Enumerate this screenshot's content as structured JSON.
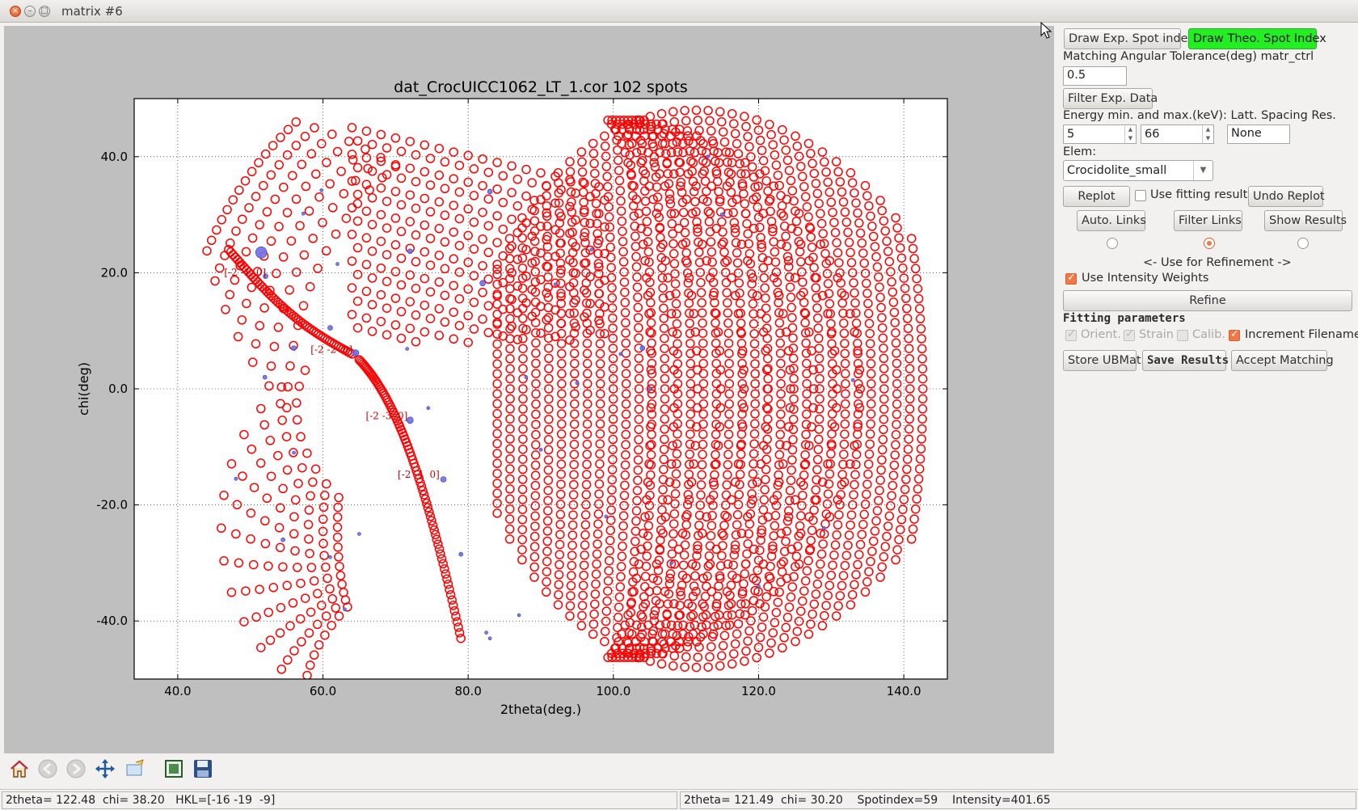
{
  "window": {
    "title": "matrix #6"
  },
  "chart_data": {
    "type": "scatter",
    "title": "dat_CrocUICC1062_LT_1.cor 102 spots",
    "xlabel": "2theta(deg.)",
    "ylabel": "chi(deg)",
    "xlim": [
      34,
      146
    ],
    "ylim": [
      -50,
      50
    ],
    "grid": true,
    "x_ticks": [
      "40.0",
      "60.0",
      "80.0",
      "100.0",
      "120.0",
      "140.0"
    ],
    "y_ticks": [
      "40.0",
      "20.0",
      "0.0",
      "-20.0",
      "-40.0"
    ],
    "series": [
      {
        "role": "theoretical",
        "marker": "open-circle",
        "color": "#ff0000",
        "families": [
          {
            "kind": "arc",
            "center": [
              0,
              0
            ],
            "r_range": [
              50,
              60
            ],
            "angle_range": [
              -40,
              40
            ]
          },
          {
            "kind": "field",
            "x_range": [
              68,
              138
            ],
            "y_range": [
              -48,
              47
            ]
          }
        ]
      },
      {
        "role": "experimental",
        "marker": "filled-circle",
        "color": "#6f6fe8",
        "points": [
          {
            "x": 51.5,
            "y": 23.5,
            "size": 14
          },
          {
            "x": 52.1,
            "y": 19.4,
            "size": 6
          },
          {
            "x": 56.0,
            "y": 7.0,
            "size": 6
          },
          {
            "x": 57.3,
            "y": 30.2,
            "size": 4
          },
          {
            "x": 59.8,
            "y": 34.2,
            "size": 4
          },
          {
            "x": 61.0,
            "y": 10.5,
            "size": 6
          },
          {
            "x": 64.5,
            "y": 6.2,
            "size": 8
          },
          {
            "x": 71.6,
            "y": 6.9,
            "size": 4
          },
          {
            "x": 72.0,
            "y": 23.7,
            "size": 6
          },
          {
            "x": 72.0,
            "y": -5.4,
            "size": 8
          },
          {
            "x": 74.5,
            "y": -3.3,
            "size": 4
          },
          {
            "x": 76.6,
            "y": -15.6,
            "size": 7
          },
          {
            "x": 82.0,
            "y": 18.2,
            "size": 7
          },
          {
            "x": 83.0,
            "y": 34.0,
            "size": 6
          },
          {
            "x": 62.0,
            "y": 21.5,
            "size": 4
          },
          {
            "x": 48.0,
            "y": -15.5,
            "size": 4
          },
          {
            "x": 52.0,
            "y": 2.0,
            "size": 5
          },
          {
            "x": 54.5,
            "y": -26.0,
            "size": 5
          },
          {
            "x": 56.0,
            "y": -11.0,
            "size": 4
          },
          {
            "x": 61.0,
            "y": -29.0,
            "size": 4
          },
          {
            "x": 63.0,
            "y": -38.0,
            "size": 4
          },
          {
            "x": 65.0,
            "y": -25.0,
            "size": 4
          },
          {
            "x": 79.0,
            "y": -28.5,
            "size": 5
          },
          {
            "x": 82.5,
            "y": -42.0,
            "size": 4
          },
          {
            "x": 83.0,
            "y": -43.0,
            "size": 4
          },
          {
            "x": 87.0,
            "y": -39.0,
            "size": 4
          },
          {
            "x": 88.0,
            "y": 2.0,
            "size": 4
          },
          {
            "x": 90.0,
            "y": -10.5,
            "size": 4
          },
          {
            "x": 92.0,
            "y": 18.0,
            "size": 4
          },
          {
            "x": 95.0,
            "y": 1.0,
            "size": 4
          },
          {
            "x": 97.0,
            "y": 24.0,
            "size": 4
          },
          {
            "x": 99.0,
            "y": -22.0,
            "size": 4
          },
          {
            "x": 101.0,
            "y": 6.0,
            "size": 4
          },
          {
            "x": 104.0,
            "y": 7.0,
            "size": 6
          },
          {
            "x": 105.0,
            "y": 0.0,
            "size": 4
          },
          {
            "x": 108.0,
            "y": -30.0,
            "size": 4
          },
          {
            "x": 113.0,
            "y": 40.0,
            "size": 4
          },
          {
            "x": 115.0,
            "y": 30.0,
            "size": 5
          },
          {
            "x": 120.0,
            "y": -34.0,
            "size": 4
          },
          {
            "x": 129.0,
            "y": -24.0,
            "size": 4
          },
          {
            "x": 133.0,
            "y": 1.5,
            "size": 4
          }
        ]
      }
    ],
    "annotations": [
      {
        "text": "[-2 -1  0]",
        "x": 46.4,
        "y": 19.5
      },
      {
        "text": "[-2 -2  0]",
        "x": 58.3,
        "y": 6.2
      },
      {
        "text": "[-2 -3  0]",
        "x": 65.9,
        "y": -5.2
      },
      {
        "text": "[-2 -4  0]",
        "x": 70.3,
        "y": -15.3
      }
    ]
  },
  "side": {
    "draw_exp_label": "Draw Exp. Spot index",
    "draw_theo_label": "Draw Theo. Spot Index",
    "tolerance_label": "Matching Angular Tolerance(deg) matr_ctrl",
    "tolerance_value": "0.5",
    "filter_exp_label": "Filter Exp. Data",
    "energy_label": "Energy min. and max.(keV): Latt. Spacing Res.",
    "energy_min": "5",
    "energy_max": "66",
    "latt_value": "None",
    "elem_label": "Elem:",
    "elem_value": "Crocidolite_small",
    "replot_label": "Replot",
    "use_fitting_label": "Use fitting results",
    "undo_replot_label": "Undo Replot",
    "auto_links_label": "Auto. Links",
    "filter_links_label": "Filter Links",
    "show_results_label": "Show Results",
    "refinement_hint": "<- Use for Refinement ->",
    "use_intensity_label": "Use Intensity Weights",
    "refine_label": "Refine",
    "fitting_params_label": "Fitting parameters",
    "orient_label": "Orient.",
    "strain_label": "Strain",
    "calib_label": "Calib.",
    "increment_label": "Increment Filename",
    "store_ubmat_label": "Store UBMat",
    "save_results_label": "Save Results",
    "accept_matching_label": "Accept Matching"
  },
  "toolbar": {
    "icons": [
      "home-icon",
      "back-icon",
      "forward-icon",
      "pan-icon",
      "zoom-icon",
      "subplots-icon",
      "save-icon"
    ]
  },
  "status": {
    "left": "2theta= 122.48  chi= 38.20   HKL=[-16 -19  -9]",
    "right": "2theta= 121.49  chi= 30.20    Spotindex=59    Intensity=401.65"
  },
  "colors": {
    "theoretical": "#ff0000",
    "experimental": "#6f6fe8",
    "active_button": "#22ee22",
    "checkbox_accent": "#f07746"
  }
}
